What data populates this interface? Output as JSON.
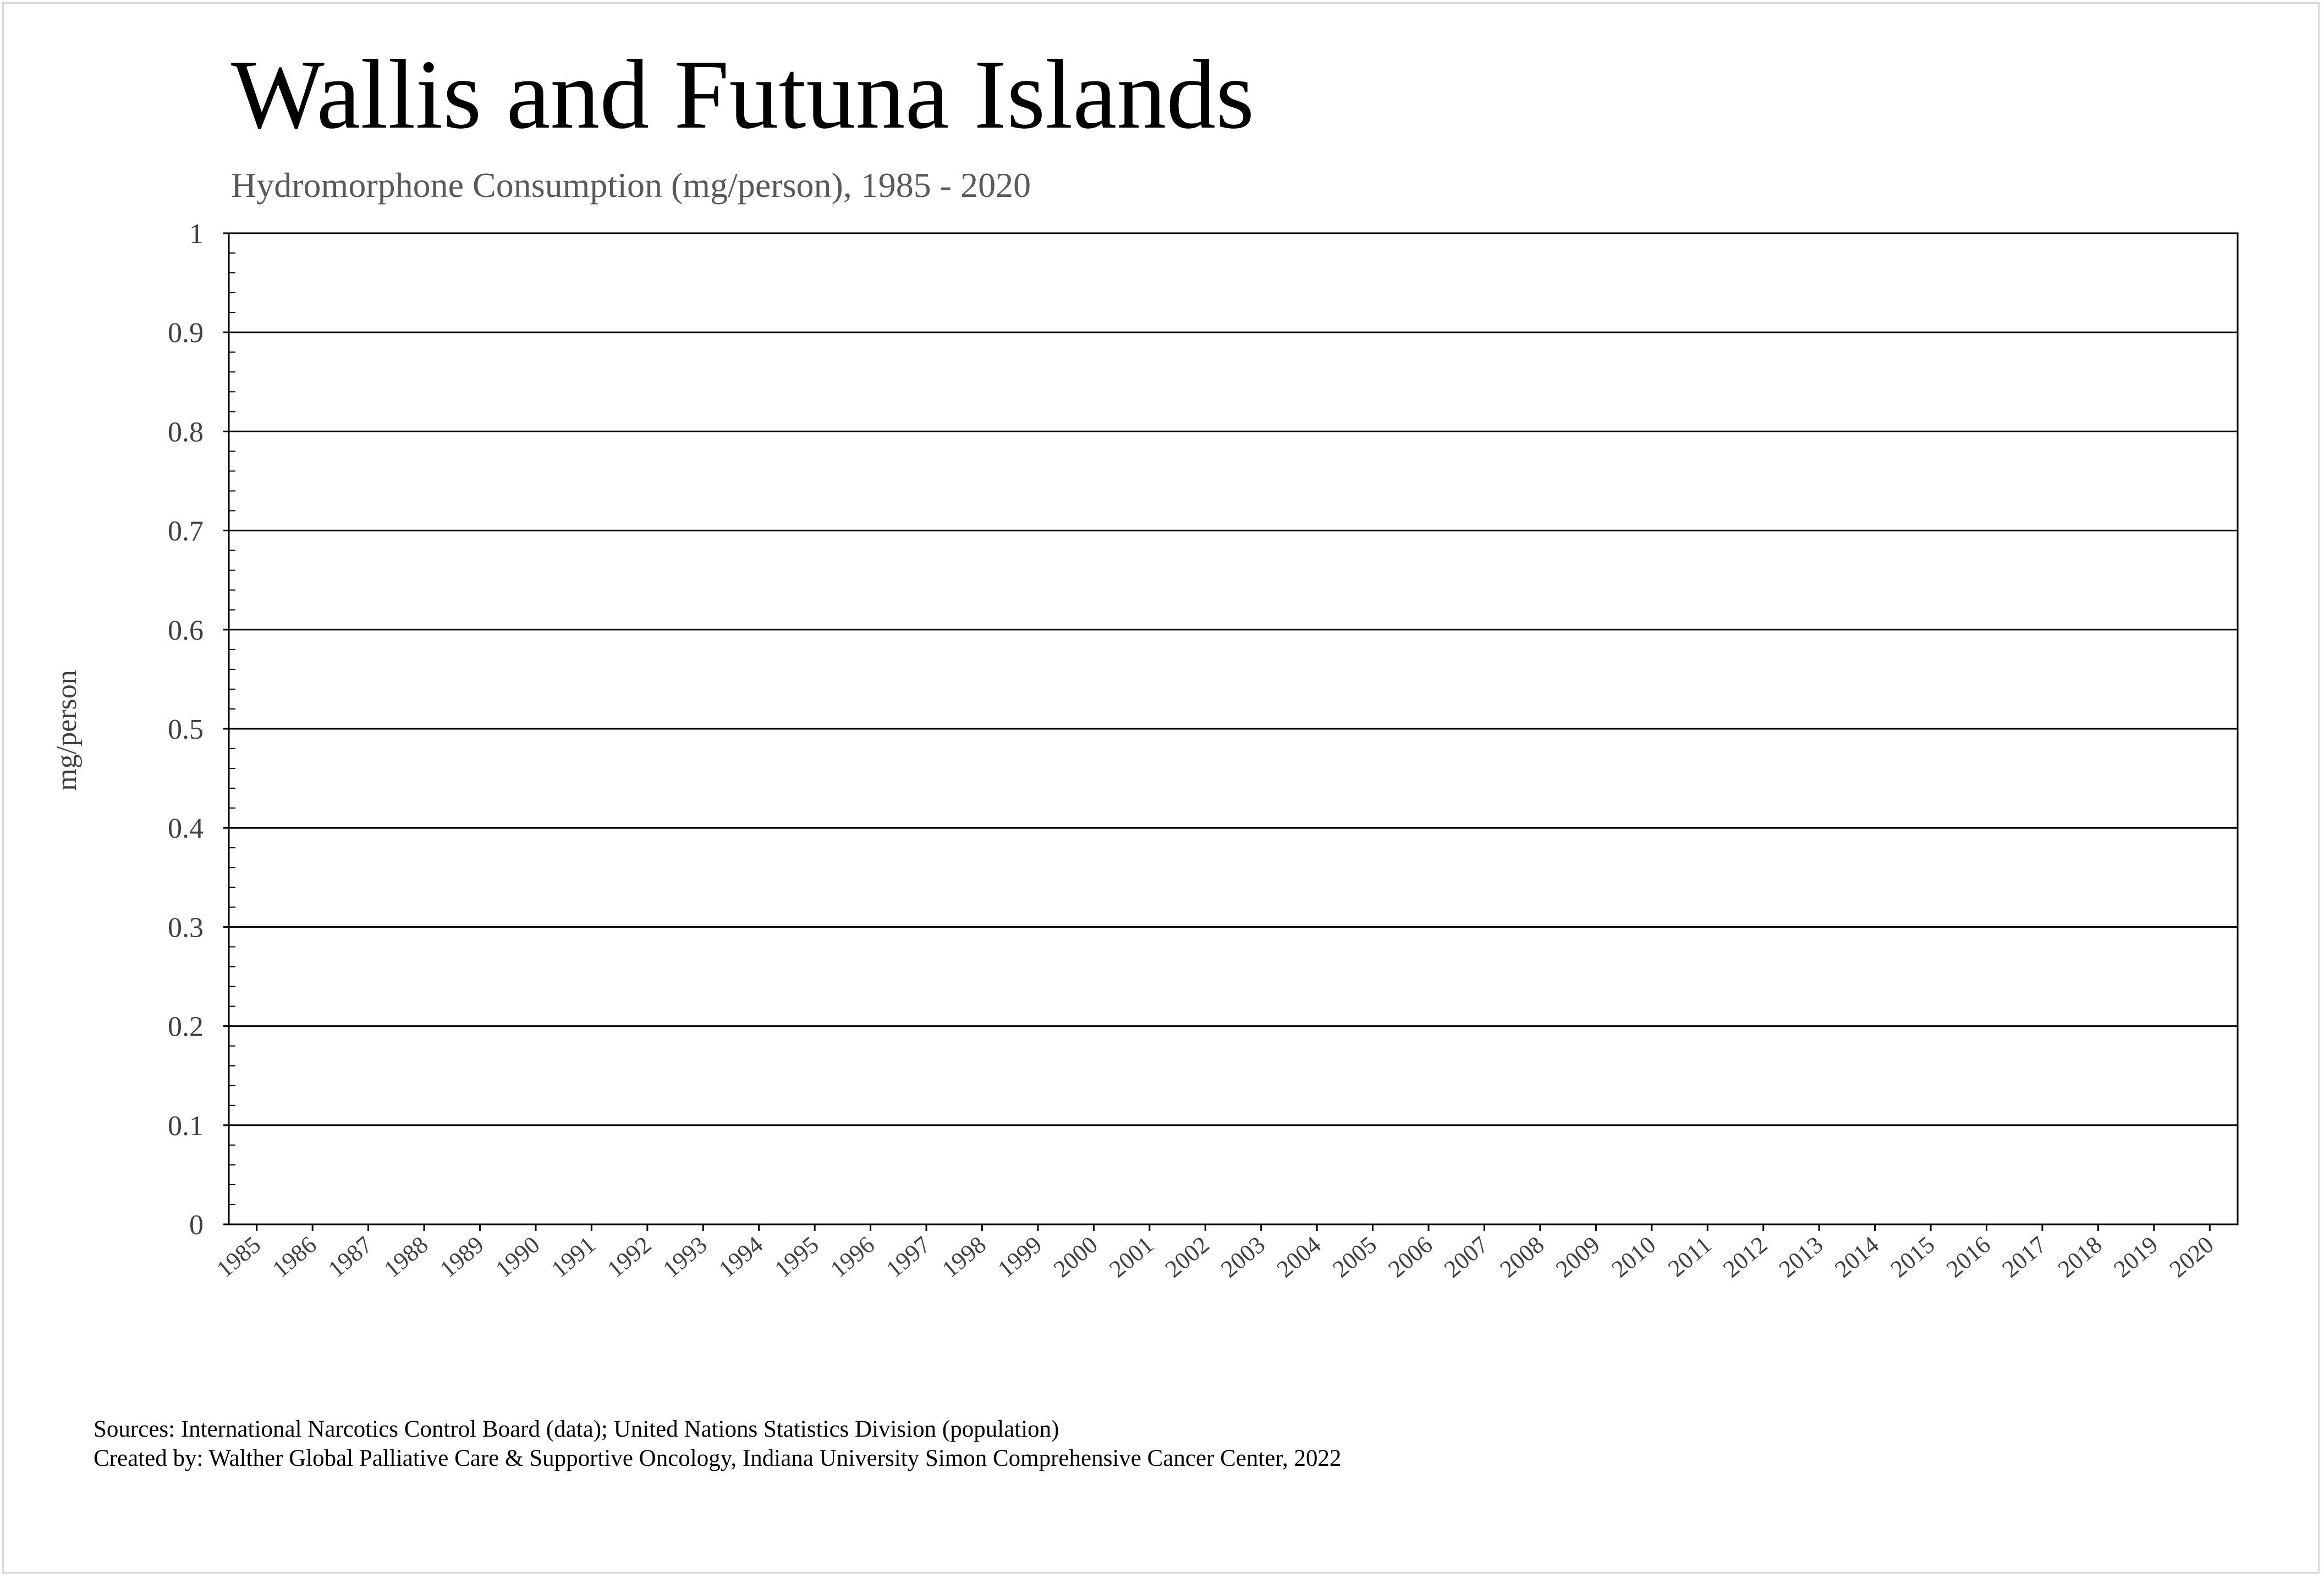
{
  "chart_data": {
    "type": "line",
    "title": "Wallis and Futuna Islands",
    "subtitle": "Hydromorphone Consumption (mg/person), 1985 - 2020",
    "xlabel": "",
    "ylabel": "mg/person",
    "x": [
      "1985",
      "1986",
      "1987",
      "1988",
      "1989",
      "1990",
      "1991",
      "1992",
      "1993",
      "1994",
      "1995",
      "1996",
      "1997",
      "1998",
      "1999",
      "2000",
      "2001",
      "2002",
      "2003",
      "2004",
      "2005",
      "2006",
      "2007",
      "2008",
      "2009",
      "2010",
      "2011",
      "2012",
      "2013",
      "2014",
      "2015",
      "2016",
      "2017",
      "2018",
      "2019",
      "2020"
    ],
    "yticks": [
      "0",
      "0.1",
      "0.2",
      "0.3",
      "0.4",
      "0.5",
      "0.6",
      "0.7",
      "0.8",
      "0.9",
      "1"
    ],
    "ylim": [
      0,
      1
    ],
    "series": [],
    "grid": true,
    "legend": "none"
  },
  "footer": {
    "sources": "Sources: International Narcotics Control Board (data); United Nations Statistics Division (population)",
    "created_by": "Created by: Walther Global Palliative Care & Supportive Oncology, Indiana University Simon Comprehensive Cancer Center, 2022"
  }
}
